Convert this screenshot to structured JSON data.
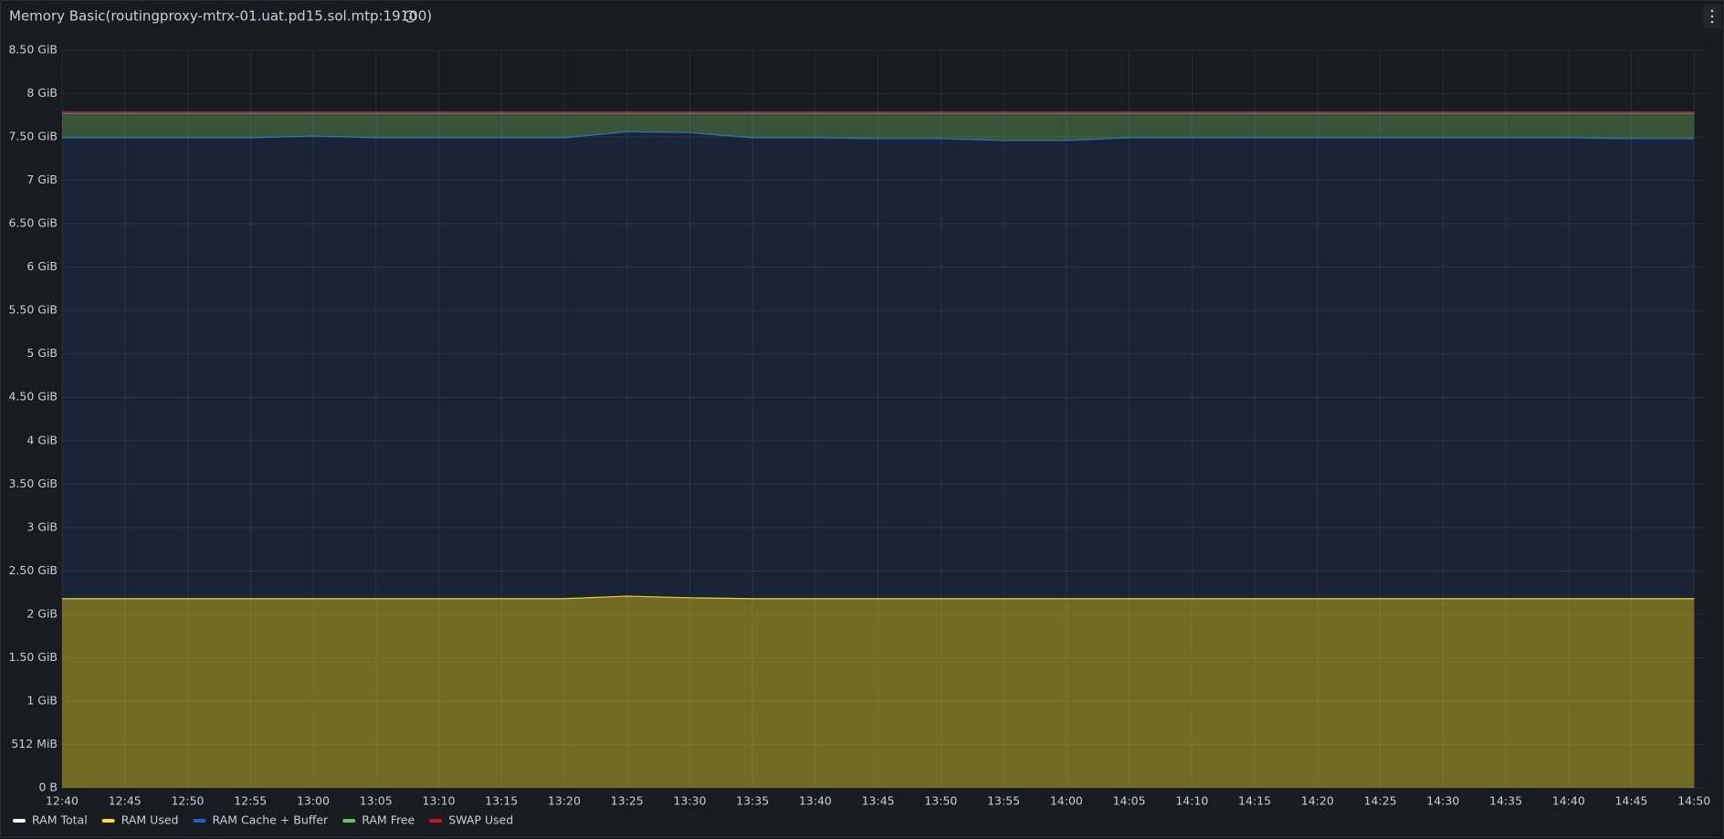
{
  "chart_data": {
    "type": "stacked-area",
    "title": "Memory Basic(routingproxy-mtrx-01.uat.pd15.sol.mtp:19100)",
    "x": [
      "12:40",
      "12:45",
      "12:50",
      "12:55",
      "13:00",
      "13:05",
      "13:10",
      "13:15",
      "13:20",
      "13:25",
      "13:30",
      "13:35",
      "13:40",
      "13:45",
      "13:50",
      "13:55",
      "14:00",
      "14:05",
      "14:10",
      "14:15",
      "14:20",
      "14:25",
      "14:30",
      "14:35",
      "14:40",
      "14:45",
      "14:50"
    ],
    "xlim": [
      "12:40",
      "14:51"
    ],
    "xticks": [
      "12:40",
      "12:45",
      "12:50",
      "12:55",
      "13:00",
      "13:05",
      "13:10",
      "13:15",
      "13:20",
      "13:25",
      "13:30",
      "13:35",
      "13:40",
      "13:45",
      "13:50",
      "13:55",
      "14:00",
      "14:05",
      "14:10",
      "14:15",
      "14:20",
      "14:25",
      "14:30",
      "14:35",
      "14:40",
      "14:45",
      "14:50"
    ],
    "ylim": [
      0,
      8.5
    ],
    "yticks": [
      {
        "value": 0,
        "label": "0 B"
      },
      {
        "value": 0.5,
        "label": "512 MiB"
      },
      {
        "value": 1,
        "label": "1 GiB"
      },
      {
        "value": 1.5,
        "label": "1.50 GiB"
      },
      {
        "value": 2,
        "label": "2 GiB"
      },
      {
        "value": 2.5,
        "label": "2.50 GiB"
      },
      {
        "value": 3,
        "label": "3 GiB"
      },
      {
        "value": 3.5,
        "label": "3.50 GiB"
      },
      {
        "value": 4,
        "label": "4 GiB"
      },
      {
        "value": 4.5,
        "label": "4.50 GiB"
      },
      {
        "value": 5,
        "label": "5 GiB"
      },
      {
        "value": 5.5,
        "label": "5.50 GiB"
      },
      {
        "value": 6,
        "label": "6 GiB"
      },
      {
        "value": 6.5,
        "label": "6.50 GiB"
      },
      {
        "value": 7,
        "label": "7 GiB"
      },
      {
        "value": 7.5,
        "label": "7.50 GiB"
      },
      {
        "value": 8,
        "label": "8 GiB"
      },
      {
        "value": 8.5,
        "label": "8.50 GiB"
      }
    ],
    "grid": true,
    "legend": "bottom-left",
    "series": [
      {
        "name": "RAM Total",
        "color": "#ffffff",
        "stack": false,
        "values": [
          7.78,
          7.78,
          7.78,
          7.78,
          7.78,
          7.78,
          7.78,
          7.78,
          7.78,
          7.78,
          7.78,
          7.78,
          7.78,
          7.78,
          7.78,
          7.78,
          7.78,
          7.78,
          7.78,
          7.78,
          7.78,
          7.78,
          7.78,
          7.78,
          7.78,
          7.78,
          7.78
        ]
      },
      {
        "name": "RAM Used",
        "color": "#fade2a",
        "stack": true,
        "values": [
          2.18,
          2.18,
          2.18,
          2.18,
          2.18,
          2.18,
          2.18,
          2.18,
          2.18,
          2.21,
          2.19,
          2.18,
          2.18,
          2.18,
          2.18,
          2.18,
          2.18,
          2.18,
          2.18,
          2.18,
          2.18,
          2.18,
          2.18,
          2.18,
          2.18,
          2.18,
          2.18
        ]
      },
      {
        "name": "RAM Cache + Buffer",
        "color": "#1f60c4",
        "stack": true,
        "values": [
          5.31,
          5.31,
          5.31,
          5.31,
          5.33,
          5.31,
          5.31,
          5.31,
          5.31,
          5.35,
          5.36,
          5.31,
          5.31,
          5.3,
          5.3,
          5.28,
          5.28,
          5.31,
          5.31,
          5.31,
          5.31,
          5.31,
          5.31,
          5.31,
          5.31,
          5.3,
          5.3
        ]
      },
      {
        "name": "RAM Free",
        "color": "#73bf69",
        "stack": true,
        "values": [
          0.29,
          0.29,
          0.29,
          0.29,
          0.27,
          0.29,
          0.29,
          0.29,
          0.29,
          0.22,
          0.23,
          0.29,
          0.29,
          0.3,
          0.3,
          0.32,
          0.32,
          0.29,
          0.29,
          0.29,
          0.29,
          0.29,
          0.29,
          0.29,
          0.29,
          0.3,
          0.3
        ]
      },
      {
        "name": "SWAP Used",
        "color": "#c4162a",
        "stack": true,
        "values": [
          0,
          0,
          0,
          0,
          0,
          0,
          0,
          0,
          0,
          0,
          0,
          0,
          0,
          0,
          0,
          0,
          0,
          0,
          0,
          0,
          0,
          0,
          0,
          0,
          0,
          0,
          0
        ]
      }
    ]
  }
}
